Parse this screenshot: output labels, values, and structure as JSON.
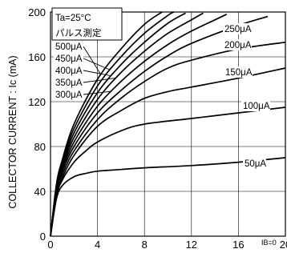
{
  "chart_data": {
    "type": "line",
    "ylabel": "COLLECTOR CURRENT : Ic (mA)",
    "xlabel": "",
    "xlim": [
      0,
      20
    ],
    "ylim": [
      0,
      200
    ],
    "x_ticks": [
      "0",
      "4",
      "8",
      "12",
      "16",
      "20"
    ],
    "y_ticks": [
      "0",
      "40",
      "80",
      "120",
      "160",
      "200"
    ],
    "grid": true,
    "annotations": {
      "temperature": "Ta=25°C",
      "pulse": "パルス測定",
      "base_current_note": "IB=0"
    },
    "series": [
      {
        "name": "50μA",
        "x": [
          0,
          0.5,
          1,
          2,
          3,
          4,
          6,
          8,
          12,
          16,
          20
        ],
        "values": [
          0,
          33,
          45,
          53,
          56,
          58,
          59.5,
          61,
          63,
          66,
          70
        ]
      },
      {
        "name": "100μA",
        "x": [
          0,
          0.5,
          1,
          2,
          3,
          4,
          6,
          8,
          12,
          16,
          20
        ],
        "values": [
          0,
          35,
          50,
          66,
          76,
          84,
          94,
          100,
          105,
          110,
          115
        ]
      },
      {
        "name": "150μA",
        "x": [
          0,
          0.5,
          1,
          2,
          4,
          6,
          8,
          10,
          12,
          16,
          20
        ],
        "values": [
          0,
          37,
          52,
          72,
          98,
          112,
          123,
          129,
          133,
          141,
          150
        ]
      },
      {
        "name": "200μA",
        "x": [
          0,
          0.5,
          1,
          2,
          4,
          6,
          8,
          10,
          12,
          16,
          20
        ],
        "values": [
          0,
          39,
          55,
          76,
          104,
          123,
          138,
          150,
          157,
          167,
          173
        ]
      },
      {
        "name": "250μA",
        "x": [
          0,
          0.5,
          1,
          2,
          4,
          6,
          8,
          10,
          12,
          16,
          18.5
        ],
        "values": [
          0,
          41,
          58,
          80,
          110,
          130,
          147,
          161,
          172,
          188,
          196
        ]
      },
      {
        "name": "300μA",
        "x": [
          0,
          0.5,
          1,
          2,
          4,
          6,
          8,
          10,
          12,
          14,
          15
        ],
        "values": [
          0,
          42,
          60,
          84,
          116,
          138,
          156,
          171,
          183,
          193,
          198
        ]
      },
      {
        "name": "350μA",
        "x": [
          0,
          0.5,
          1,
          2,
          4,
          6,
          8,
          10,
          12,
          13
        ],
        "values": [
          0,
          43,
          62,
          88,
          122,
          146,
          165,
          181,
          193,
          199
        ]
      },
      {
        "name": "400μA",
        "x": [
          0,
          0.5,
          1,
          2,
          4,
          6,
          8,
          10,
          11.5
        ],
        "values": [
          0,
          44,
          64,
          92,
          128,
          153,
          173,
          190,
          199
        ]
      },
      {
        "name": "450μA",
        "x": [
          0,
          0.5,
          1,
          2,
          4,
          6,
          8,
          10,
          10.5
        ],
        "values": [
          0,
          45,
          66,
          96,
          134,
          160,
          181,
          197,
          200
        ]
      },
      {
        "name": "500μA",
        "x": [
          0,
          0.5,
          1,
          2,
          4,
          6,
          8,
          9.5
        ],
        "values": [
          0,
          46,
          68,
          100,
          140,
          167,
          189,
          200
        ]
      }
    ]
  }
}
